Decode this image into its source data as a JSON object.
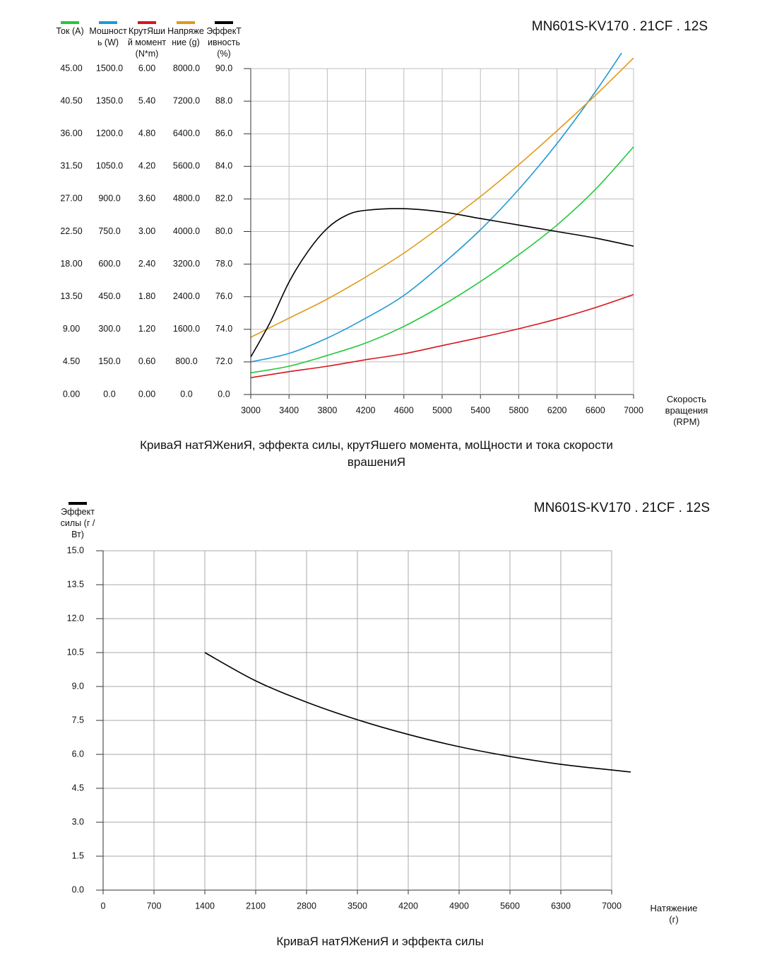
{
  "chart_data": [
    {
      "type": "line",
      "title": "MN601S-KV170 . 21CF . 12S",
      "caption": "КриваЯ натЯЖениЯ, эффекта силы, крутЯшего момента, моЩности и тока скорости врашениЯ",
      "x_label": "Скорость вращения (RPM)",
      "xlim": [
        3000,
        7000
      ],
      "xticks": [
        3000,
        3400,
        3800,
        4200,
        4600,
        5000,
        5400,
        5800,
        6200,
        6600,
        7000
      ],
      "grid": true,
      "series": [
        {
          "name": "Ток (A)",
          "color": "#22c93a",
          "x": [
            3000,
            3400,
            3800,
            4200,
            4600,
            5000,
            5400,
            5800,
            6200,
            6600,
            7000
          ],
          "values": [
            3.0,
            3.9,
            5.4,
            7.1,
            9.4,
            12.3,
            15.6,
            19.3,
            23.4,
            28.3,
            34.2
          ],
          "ylim": [
            0,
            45
          ],
          "yticks": [
            {
              "value": 0,
              "label": "0.00"
            },
            {
              "value": 4.5,
              "label": "4.50"
            },
            {
              "value": 9,
              "label": "9.00"
            },
            {
              "value": 13.5,
              "label": "13.50"
            },
            {
              "value": 18,
              "label": "18.00"
            },
            {
              "value": 22.5,
              "label": "22.50"
            },
            {
              "value": 27,
              "label": "27.00"
            },
            {
              "value": 31.5,
              "label": "31.50"
            },
            {
              "value": 36,
              "label": "36.00"
            },
            {
              "value": 40.5,
              "label": "40.50"
            },
            {
              "value": 45,
              "label": "45.00"
            }
          ]
        },
        {
          "name": "Мошность (W)",
          "color": "#1e9ad6",
          "x": [
            3000,
            3400,
            3800,
            4200,
            4600,
            5000,
            5400,
            5800,
            6200,
            6600,
            6875
          ],
          "values": [
            150,
            189,
            260,
            351,
            456,
            599,
            758,
            944,
            1155,
            1393,
            1572
          ],
          "ylim": [
            0,
            1500
          ],
          "yticks": [
            {
              "value": 0,
              "label": "0.0"
            },
            {
              "value": 150,
              "label": "150.0"
            },
            {
              "value": 300,
              "label": "300.0"
            },
            {
              "value": 450,
              "label": "450.0"
            },
            {
              "value": 600,
              "label": "600.0"
            },
            {
              "value": 750,
              "label": "750.0"
            },
            {
              "value": 900,
              "label": "900.0"
            },
            {
              "value": 1050,
              "label": "1050.0"
            },
            {
              "value": 1200,
              "label": "1200.0"
            },
            {
              "value": 1350,
              "label": "1350.0"
            },
            {
              "value": 1500,
              "label": "1500.0"
            }
          ]
        },
        {
          "name": "КрутЯший момент (N*m)",
          "color": "#d8141c",
          "x": [
            3000,
            3400,
            3800,
            4200,
            4600,
            5000,
            5400,
            5800,
            6200,
            6600,
            7000
          ],
          "values": [
            0.31,
            0.42,
            0.52,
            0.64,
            0.75,
            0.9,
            1.05,
            1.21,
            1.39,
            1.6,
            1.84
          ],
          "ylim": [
            0,
            6
          ],
          "yticks": [
            {
              "value": 0,
              "label": "0.00"
            },
            {
              "value": 0.6,
              "label": "0.60"
            },
            {
              "value": 1.2,
              "label": "1.20"
            },
            {
              "value": 1.8,
              "label": "1.80"
            },
            {
              "value": 2.4,
              "label": "2.40"
            },
            {
              "value": 3,
              "label": "3.00"
            },
            {
              "value": 3.6,
              "label": "3.60"
            },
            {
              "value": 4.2,
              "label": "4.20"
            },
            {
              "value": 4.8,
              "label": "4.80"
            },
            {
              "value": 5.4,
              "label": "5.40"
            },
            {
              "value": 6,
              "label": "6.00"
            }
          ]
        },
        {
          "name": "Напряжение (g)",
          "color": "#e09a1a",
          "x": [
            3000,
            3400,
            3800,
            4200,
            4600,
            5000,
            5400,
            5800,
            6200,
            6600,
            7000
          ],
          "values": [
            1406,
            1874,
            2343,
            2881,
            3471,
            4148,
            4859,
            5640,
            6473,
            7341,
            8260
          ],
          "ylim": [
            0,
            8000
          ],
          "yticks": [
            {
              "value": 0,
              "label": "0.0"
            },
            {
              "value": 800,
              "label": "800.0"
            },
            {
              "value": 1600,
              "label": "1600.0"
            },
            {
              "value": 2400,
              "label": "2400.0"
            },
            {
              "value": 3200,
              "label": "3200.0"
            },
            {
              "value": 4000,
              "label": "4000.0"
            },
            {
              "value": 4800,
              "label": "4800.0"
            },
            {
              "value": 5600,
              "label": "5600.0"
            },
            {
              "value": 6400,
              "label": "6400.0"
            },
            {
              "value": 7200,
              "label": "7200.0"
            },
            {
              "value": 8000,
              "label": "8000.0"
            }
          ]
        },
        {
          "name": "ЭффекТивность (%)",
          "color": "#000000",
          "x": [
            3000,
            3200,
            3400,
            3600,
            3800,
            4000,
            4200,
            4600,
            5000,
            5400,
            5800,
            6200,
            6600,
            7000
          ],
          "values": [
            72.3,
            74.4,
            76.9,
            78.8,
            80.2,
            81.0,
            81.3,
            81.4,
            81.2,
            80.8,
            80.4,
            80.0,
            79.6,
            79.1
          ],
          "ylim": [
            0,
            90
          ],
          "yticks": [
            {
              "value": 0,
              "label": "0.0"
            },
            {
              "value": 72,
              "label": "72.0"
            },
            {
              "value": 74,
              "label": "74.0"
            },
            {
              "value": 76,
              "label": "76.0"
            },
            {
              "value": 78,
              "label": "78.0"
            },
            {
              "value": 80,
              "label": "80.0"
            },
            {
              "value": 82,
              "label": "82.0"
            },
            {
              "value": 84,
              "label": "84.0"
            },
            {
              "value": 86,
              "label": "86.0"
            },
            {
              "value": 88,
              "label": "88.0"
            },
            {
              "value": 90,
              "label": "90.0"
            }
          ]
        }
      ]
    },
    {
      "type": "line",
      "title": "MN601S-KV170 . 21CF . 12S",
      "caption": "КриваЯ натЯЖениЯ и эффекта силы",
      "x_label": "Натяжение (г)",
      "xlim": [
        0,
        7000
      ],
      "xticks": [
        0,
        700,
        1400,
        2100,
        2800,
        3500,
        4200,
        4900,
        5600,
        6300,
        7000
      ],
      "ylim": [
        0,
        15
      ],
      "yticks": [
        {
          "value": 0,
          "label": "0.0"
        },
        1.5,
        {
          "value": 3,
          "label": "3.0"
        },
        4.5,
        {
          "value": 6,
          "label": "6.0"
        },
        7.5,
        {
          "value": 9,
          "label": "9.0"
        },
        10.5,
        {
          "value": 12,
          "label": "12.0"
        },
        13.5,
        {
          "value": 15,
          "label": "15.0"
        }
      ],
      "grid": true,
      "series": [
        {
          "name": "Эффект силы (г / Вт)",
          "color": "#000000",
          "x": [
            1400,
            2100,
            2800,
            3500,
            4200,
            4900,
            5600,
            6300,
            7000,
            7263
          ],
          "values": [
            10.5,
            9.25,
            8.31,
            7.53,
            6.88,
            6.34,
            5.91,
            5.56,
            5.31,
            5.22
          ]
        }
      ]
    }
  ]
}
